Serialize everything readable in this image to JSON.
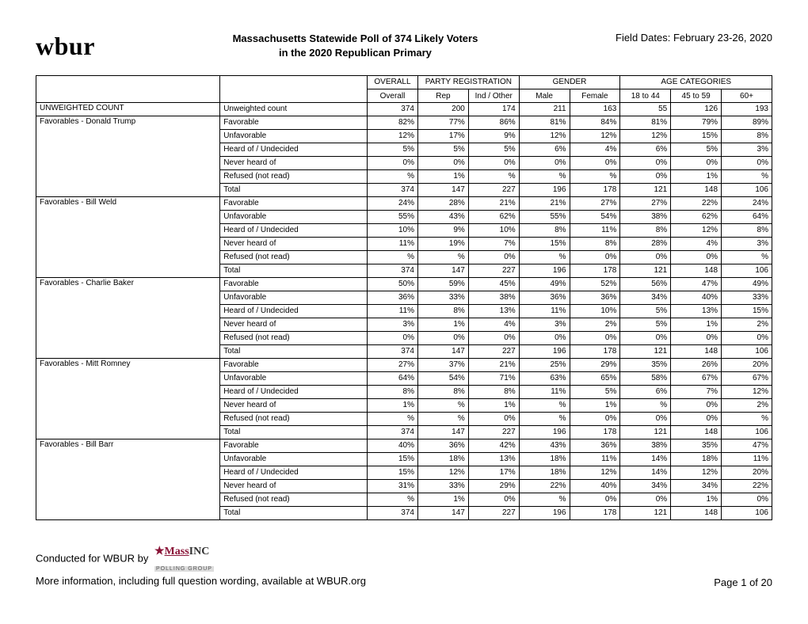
{
  "logo": "wbur",
  "title_line1": "Massachusetts Statewide Poll of 374 Likely Voters",
  "title_line2": "in the 2020 Republican Primary",
  "field_dates": "Field Dates: February 23-26, 2020",
  "group_headers": {
    "overall": "OVERALL",
    "party": "PARTY REGISTRATION",
    "gender": "GENDER",
    "age": "AGE CATEGORIES"
  },
  "col_headers": [
    "Overall",
    "Rep",
    "Ind / Other",
    "Male",
    "Female",
    "18 to 44",
    "45 to 59",
    "60+"
  ],
  "sections": [
    {
      "label": "UNWEIGHTED COUNT",
      "rows": [
        {
          "sub": "Unweighted count",
          "vals": [
            "374",
            "200",
            "174",
            "211",
            "163",
            "55",
            "126",
            "193"
          ]
        }
      ]
    },
    {
      "label": "Favorables - Donald Trump",
      "rows": [
        {
          "sub": "Favorable",
          "vals": [
            "82%",
            "77%",
            "86%",
            "81%",
            "84%",
            "81%",
            "79%",
            "89%"
          ]
        },
        {
          "sub": "Unfavorable",
          "vals": [
            "12%",
            "17%",
            "9%",
            "12%",
            "12%",
            "12%",
            "15%",
            "8%"
          ]
        },
        {
          "sub": "Heard of / Undecided",
          "vals": [
            "5%",
            "5%",
            "5%",
            "6%",
            "4%",
            "6%",
            "5%",
            "3%"
          ]
        },
        {
          "sub": "Never heard of",
          "vals": [
            "0%",
            "0%",
            "0%",
            "0%",
            "0%",
            "0%",
            "0%",
            "0%"
          ]
        },
        {
          "sub": "Refused (not read)",
          "vals": [
            "%",
            "1%",
            "%",
            "%",
            "%",
            "0%",
            "1%",
            "%"
          ]
        },
        {
          "sub": "Total",
          "vals": [
            "374",
            "147",
            "227",
            "196",
            "178",
            "121",
            "148",
            "106"
          ]
        }
      ]
    },
    {
      "label": "Favorables - Bill Weld",
      "rows": [
        {
          "sub": "Favorable",
          "vals": [
            "24%",
            "28%",
            "21%",
            "21%",
            "27%",
            "27%",
            "22%",
            "24%"
          ]
        },
        {
          "sub": "Unfavorable",
          "vals": [
            "55%",
            "43%",
            "62%",
            "55%",
            "54%",
            "38%",
            "62%",
            "64%"
          ]
        },
        {
          "sub": "Heard of / Undecided",
          "vals": [
            "10%",
            "9%",
            "10%",
            "8%",
            "11%",
            "8%",
            "12%",
            "8%"
          ]
        },
        {
          "sub": "Never heard of",
          "vals": [
            "11%",
            "19%",
            "7%",
            "15%",
            "8%",
            "28%",
            "4%",
            "3%"
          ]
        },
        {
          "sub": "Refused (not read)",
          "vals": [
            "%",
            "%",
            "0%",
            "%",
            "0%",
            "0%",
            "0%",
            "%"
          ]
        },
        {
          "sub": "Total",
          "vals": [
            "374",
            "147",
            "227",
            "196",
            "178",
            "121",
            "148",
            "106"
          ]
        }
      ]
    },
    {
      "label": "Favorables - Charlie Baker",
      "rows": [
        {
          "sub": "Favorable",
          "vals": [
            "50%",
            "59%",
            "45%",
            "49%",
            "52%",
            "56%",
            "47%",
            "49%"
          ]
        },
        {
          "sub": "Unfavorable",
          "vals": [
            "36%",
            "33%",
            "38%",
            "36%",
            "36%",
            "34%",
            "40%",
            "33%"
          ]
        },
        {
          "sub": "Heard of / Undecided",
          "vals": [
            "11%",
            "8%",
            "13%",
            "11%",
            "10%",
            "5%",
            "13%",
            "15%"
          ]
        },
        {
          "sub": "Never heard of",
          "vals": [
            "3%",
            "1%",
            "4%",
            "3%",
            "2%",
            "5%",
            "1%",
            "2%"
          ]
        },
        {
          "sub": "Refused (not read)",
          "vals": [
            "0%",
            "0%",
            "0%",
            "0%",
            "0%",
            "0%",
            "0%",
            "0%"
          ]
        },
        {
          "sub": "Total",
          "vals": [
            "374",
            "147",
            "227",
            "196",
            "178",
            "121",
            "148",
            "106"
          ]
        }
      ]
    },
    {
      "label": "Favorables - Mitt Romney",
      "rows": [
        {
          "sub": "Favorable",
          "vals": [
            "27%",
            "37%",
            "21%",
            "25%",
            "29%",
            "35%",
            "26%",
            "20%"
          ]
        },
        {
          "sub": "Unfavorable",
          "vals": [
            "64%",
            "54%",
            "71%",
            "63%",
            "65%",
            "58%",
            "67%",
            "67%"
          ]
        },
        {
          "sub": "Heard of / Undecided",
          "vals": [
            "8%",
            "8%",
            "8%",
            "11%",
            "5%",
            "6%",
            "7%",
            "12%"
          ]
        },
        {
          "sub": "Never heard of",
          "vals": [
            "1%",
            "%",
            "1%",
            "%",
            "1%",
            "%",
            "0%",
            "2%"
          ]
        },
        {
          "sub": "Refused (not read)",
          "vals": [
            "%",
            "%",
            "0%",
            "%",
            "0%",
            "0%",
            "0%",
            "%"
          ]
        },
        {
          "sub": "Total",
          "vals": [
            "374",
            "147",
            "227",
            "196",
            "178",
            "121",
            "148",
            "106"
          ]
        }
      ]
    },
    {
      "label": "Favorables - Bill Barr",
      "rows": [
        {
          "sub": "Favorable",
          "vals": [
            "40%",
            "36%",
            "42%",
            "43%",
            "36%",
            "38%",
            "35%",
            "47%"
          ]
        },
        {
          "sub": "Unfavorable",
          "vals": [
            "15%",
            "18%",
            "13%",
            "18%",
            "11%",
            "14%",
            "18%",
            "11%"
          ]
        },
        {
          "sub": "Heard of / Undecided",
          "vals": [
            "15%",
            "12%",
            "17%",
            "18%",
            "12%",
            "14%",
            "12%",
            "20%"
          ]
        },
        {
          "sub": "Never heard of",
          "vals": [
            "31%",
            "33%",
            "29%",
            "22%",
            "40%",
            "34%",
            "34%",
            "22%"
          ]
        },
        {
          "sub": "Refused (not read)",
          "vals": [
            "%",
            "1%",
            "0%",
            "%",
            "0%",
            "0%",
            "1%",
            "0%"
          ]
        },
        {
          "sub": "Total",
          "vals": [
            "374",
            "147",
            "227",
            "196",
            "178",
            "121",
            "148",
            "106"
          ]
        }
      ]
    }
  ],
  "footer": {
    "conducted": "Conducted for WBUR by",
    "more_info": "More information, including full question wording, available at WBUR.org",
    "page": "Page 1 of 20",
    "massinc_star": "★",
    "massinc_mass": "Mass",
    "massinc_inc": "INC",
    "massinc_sub": "POLLING GROUP"
  },
  "style": {
    "background": "#ffffff",
    "border_color": "#000000",
    "font_size_table": 10,
    "font_size_header": 13,
    "logo_font_size": 32
  }
}
